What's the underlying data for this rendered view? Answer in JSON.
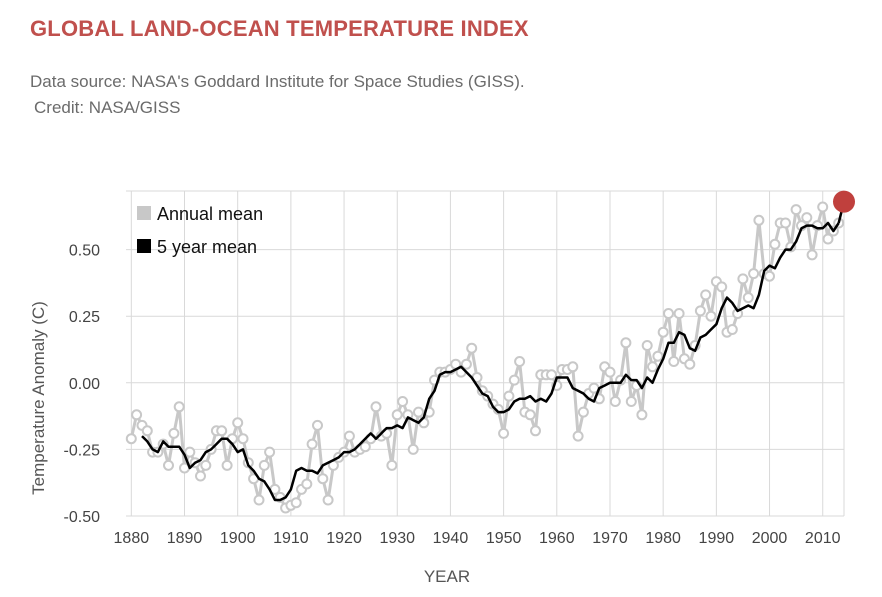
{
  "header": {
    "title": "GLOBAL LAND-OCEAN TEMPERATURE INDEX",
    "source": "Data source: NASA's Goddard Institute for Space Studies (GISS).",
    "credit": "Credit: NASA/GISS"
  },
  "colors": {
    "title": "#c0504d",
    "annual": "#c8c8c8",
    "five_year": "#000000",
    "highlight": "#c0403d",
    "grid": "#d9d9d9"
  },
  "chart_data": {
    "type": "line",
    "xlabel": "YEAR",
    "ylabel": "Temperature Anomaly (C)",
    "xlim": [
      1879,
      2014
    ],
    "ylim": [
      -0.5,
      0.72
    ],
    "xticks": [
      1880,
      1890,
      1900,
      1910,
      1920,
      1930,
      1940,
      1950,
      1960,
      1970,
      1980,
      1990,
      2000,
      2010
    ],
    "xtick_labels": [
      "1880",
      "1890",
      "1900",
      "1910",
      "1920",
      "1930",
      "1940",
      "1950",
      "1960",
      "1970",
      "1980",
      "1990",
      "2000",
      "2010"
    ],
    "yticks": [
      -0.5,
      -0.25,
      0.0,
      0.25,
      0.5
    ],
    "ytick_labels": [
      "-0.50",
      "-0.25",
      "0.00",
      "0.25",
      "0.50"
    ],
    "grid": true,
    "legend_position": "top-left",
    "highlight_point": {
      "x": 2014,
      "y": 0.68
    },
    "series": [
      {
        "name": "Annual mean",
        "style": "line-with-open-markers",
        "x": [
          1880,
          1881,
          1882,
          1883,
          1884,
          1885,
          1886,
          1887,
          1888,
          1889,
          1890,
          1891,
          1892,
          1893,
          1894,
          1895,
          1896,
          1897,
          1898,
          1899,
          1900,
          1901,
          1902,
          1903,
          1904,
          1905,
          1906,
          1907,
          1908,
          1909,
          1910,
          1911,
          1912,
          1913,
          1914,
          1915,
          1916,
          1917,
          1918,
          1919,
          1920,
          1921,
          1922,
          1923,
          1924,
          1925,
          1926,
          1927,
          1928,
          1929,
          1930,
          1931,
          1932,
          1933,
          1934,
          1935,
          1936,
          1937,
          1938,
          1939,
          1940,
          1941,
          1942,
          1943,
          1944,
          1945,
          1946,
          1947,
          1948,
          1949,
          1950,
          1951,
          1952,
          1953,
          1954,
          1955,
          1956,
          1957,
          1958,
          1959,
          1960,
          1961,
          1962,
          1963,
          1964,
          1965,
          1966,
          1967,
          1968,
          1969,
          1970,
          1971,
          1972,
          1973,
          1974,
          1975,
          1976,
          1977,
          1978,
          1979,
          1980,
          1981,
          1982,
          1983,
          1984,
          1985,
          1986,
          1987,
          1988,
          1989,
          1990,
          1991,
          1992,
          1993,
          1994,
          1995,
          1996,
          1997,
          1998,
          1999,
          2000,
          2001,
          2002,
          2003,
          2004,
          2005,
          2006,
          2007,
          2008,
          2009,
          2010,
          2011,
          2012,
          2013
        ],
        "y": [
          -0.21,
          -0.12,
          -0.16,
          -0.18,
          -0.26,
          -0.26,
          -0.23,
          -0.31,
          -0.19,
          -0.09,
          -0.32,
          -0.26,
          -0.3,
          -0.35,
          -0.31,
          -0.25,
          -0.18,
          -0.18,
          -0.31,
          -0.21,
          -0.15,
          -0.21,
          -0.3,
          -0.36,
          -0.44,
          -0.31,
          -0.26,
          -0.4,
          -0.43,
          -0.47,
          -0.46,
          -0.45,
          -0.4,
          -0.38,
          -0.23,
          -0.16,
          -0.36,
          -0.44,
          -0.31,
          -0.28,
          -0.26,
          -0.2,
          -0.26,
          -0.25,
          -0.24,
          -0.21,
          -0.09,
          -0.2,
          -0.19,
          -0.31,
          -0.12,
          -0.07,
          -0.12,
          -0.25,
          -0.11,
          -0.15,
          -0.11,
          0.01,
          0.04,
          0.04,
          0.05,
          0.07,
          0.04,
          0.07,
          0.13,
          0.02,
          -0.03,
          -0.05,
          -0.08,
          -0.1,
          -0.19,
          -0.05,
          0.01,
          0.08,
          -0.11,
          -0.12,
          -0.18,
          0.03,
          0.03,
          0.03,
          -0.01,
          0.05,
          0.05,
          0.06,
          -0.2,
          -0.11,
          -0.04,
          -0.02,
          -0.06,
          0.06,
          0.04,
          -0.07,
          0.01,
          0.15,
          -0.07,
          -0.01,
          -0.12,
          0.14,
          0.06,
          0.1,
          0.19,
          0.26,
          0.08,
          0.26,
          0.09,
          0.07,
          0.14,
          0.27,
          0.33,
          0.25,
          0.38,
          0.36,
          0.19,
          0.2,
          0.26,
          0.39,
          0.32,
          0.41,
          0.61,
          0.41,
          0.4,
          0.52,
          0.6,
          0.6,
          0.51,
          0.65,
          0.59,
          0.62,
          0.48,
          0.59,
          0.66,
          0.54,
          0.57,
          0.6
        ]
      },
      {
        "name": "5 year mean",
        "style": "line",
        "x": [
          1882,
          1883,
          1884,
          1885,
          1886,
          1887,
          1888,
          1889,
          1890,
          1891,
          1892,
          1893,
          1894,
          1895,
          1896,
          1897,
          1898,
          1899,
          1900,
          1901,
          1902,
          1903,
          1904,
          1905,
          1906,
          1907,
          1908,
          1909,
          1910,
          1911,
          1912,
          1913,
          1914,
          1915,
          1916,
          1917,
          1918,
          1919,
          1920,
          1921,
          1922,
          1923,
          1924,
          1925,
          1926,
          1927,
          1928,
          1929,
          1930,
          1931,
          1932,
          1933,
          1934,
          1935,
          1936,
          1937,
          1938,
          1939,
          1940,
          1941,
          1942,
          1943,
          1944,
          1945,
          1946,
          1947,
          1948,
          1949,
          1950,
          1951,
          1952,
          1953,
          1954,
          1955,
          1956,
          1957,
          1958,
          1959,
          1960,
          1961,
          1962,
          1963,
          1964,
          1965,
          1966,
          1967,
          1968,
          1969,
          1970,
          1971,
          1972,
          1973,
          1974,
          1975,
          1976,
          1977,
          1978,
          1979,
          1980,
          1981,
          1982,
          1983,
          1984,
          1985,
          1986,
          1987,
          1988,
          1989,
          1990,
          1991,
          1992,
          1993,
          1994,
          1995,
          1996,
          1997,
          1998,
          1999,
          2000,
          2001,
          2002,
          2003,
          2004,
          2005,
          2006,
          2007,
          2008,
          2009,
          2010,
          2011,
          2012,
          2013
        ],
        "y": [
          -0.2,
          -0.22,
          -0.25,
          -0.26,
          -0.22,
          -0.24,
          -0.24,
          -0.24,
          -0.27,
          -0.32,
          -0.3,
          -0.29,
          -0.26,
          -0.25,
          -0.23,
          -0.21,
          -0.21,
          -0.23,
          -0.26,
          -0.25,
          -0.31,
          -0.33,
          -0.36,
          -0.37,
          -0.4,
          -0.44,
          -0.44,
          -0.43,
          -0.4,
          -0.33,
          -0.32,
          -0.33,
          -0.33,
          -0.34,
          -0.31,
          -0.3,
          -0.29,
          -0.28,
          -0.26,
          -0.26,
          -0.25,
          -0.23,
          -0.21,
          -0.19,
          -0.21,
          -0.19,
          -0.17,
          -0.17,
          -0.16,
          -0.17,
          -0.13,
          -0.14,
          -0.15,
          -0.13,
          -0.06,
          -0.03,
          0.03,
          0.04,
          0.04,
          0.05,
          0.06,
          0.04,
          0.02,
          -0.01,
          -0.04,
          -0.05,
          -0.09,
          -0.11,
          -0.11,
          -0.1,
          -0.07,
          -0.06,
          -0.06,
          -0.05,
          -0.07,
          -0.06,
          -0.07,
          -0.04,
          0.02,
          0.02,
          0.02,
          -0.02,
          -0.03,
          -0.04,
          -0.06,
          -0.07,
          -0.02,
          -0.01,
          0.0,
          0.0,
          0.0,
          0.03,
          0.01,
          0.01,
          -0.02,
          0.02,
          0.0,
          0.05,
          0.09,
          0.15,
          0.15,
          0.19,
          0.18,
          0.13,
          0.12,
          0.17,
          0.18,
          0.2,
          0.22,
          0.28,
          0.32,
          0.3,
          0.27,
          0.28,
          0.29,
          0.28,
          0.33,
          0.42,
          0.44,
          0.43,
          0.47,
          0.5,
          0.5,
          0.53,
          0.58,
          0.59,
          0.59,
          0.58,
          0.58,
          0.6,
          0.57,
          0.6
        ]
      }
    ]
  }
}
